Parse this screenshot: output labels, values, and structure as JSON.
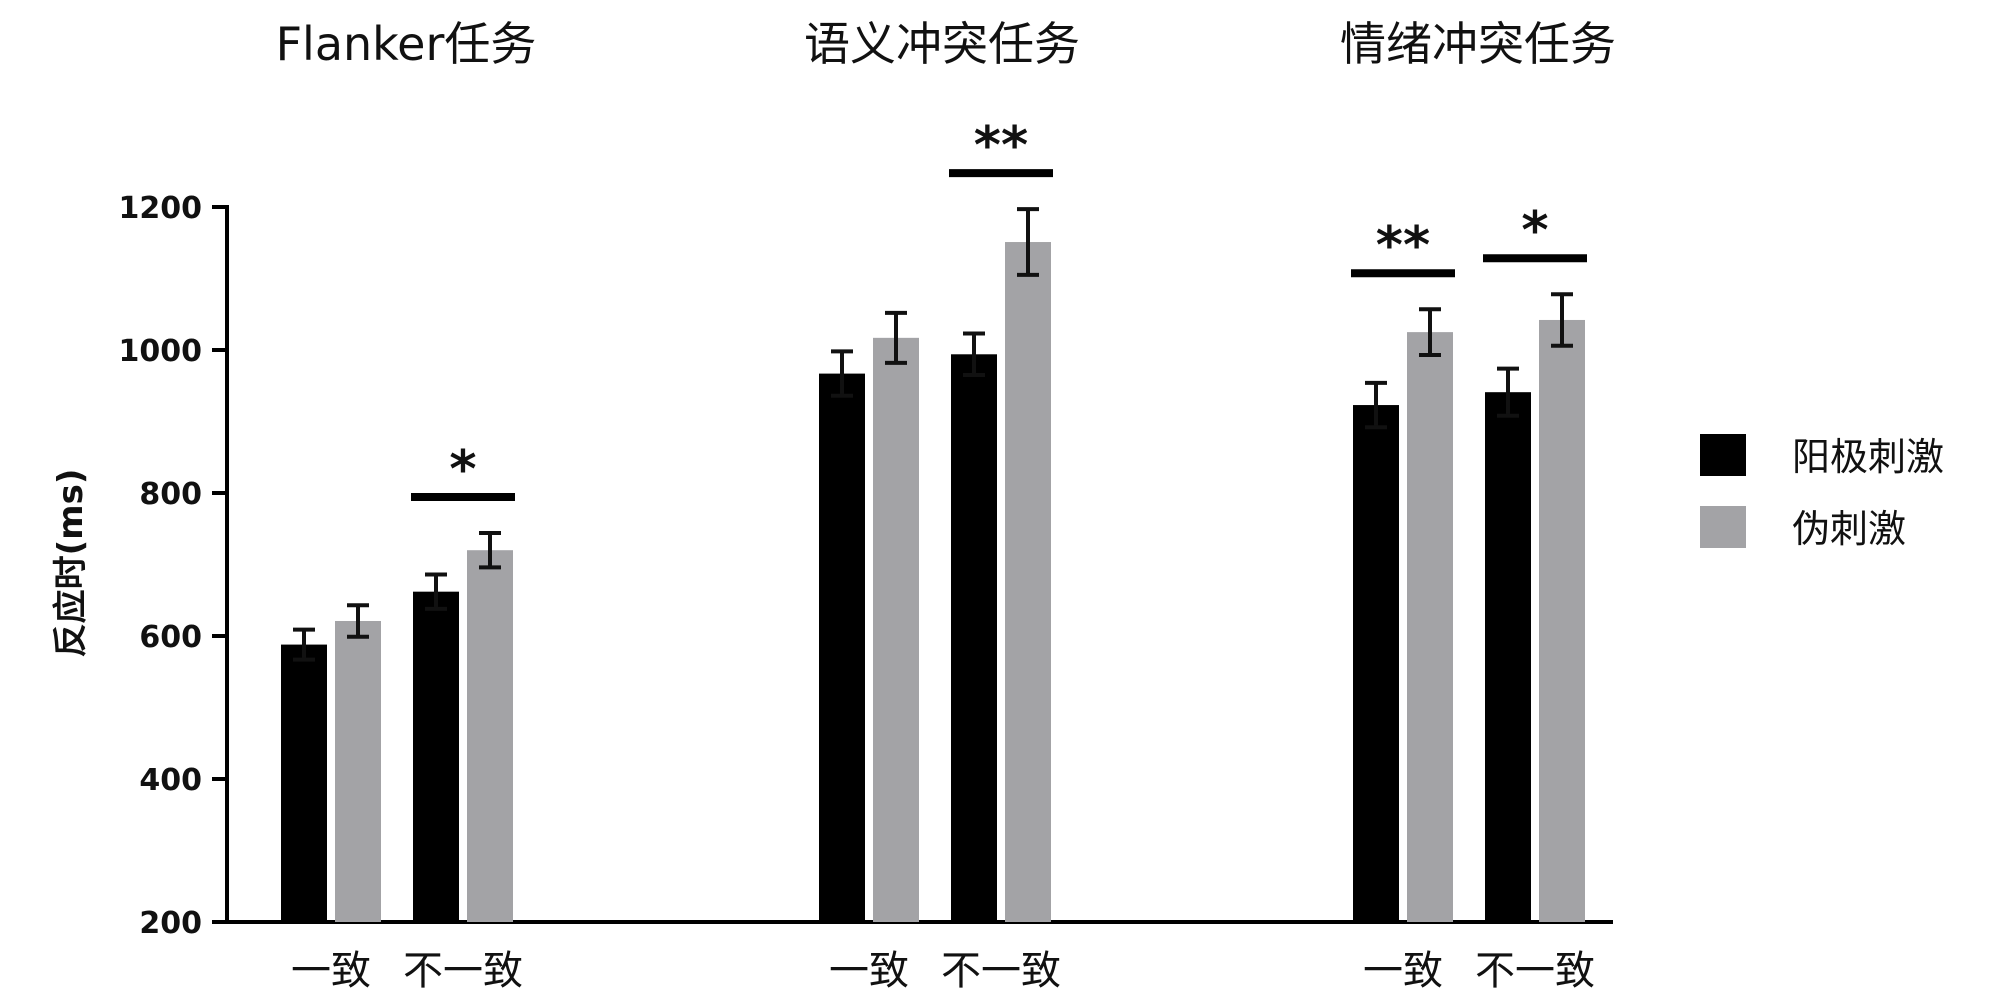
{
  "chart_data": {
    "type": "bar",
    "ylabel": "反应时(ms)",
    "ylim": [
      200,
      1200
    ],
    "yticks": [
      "200",
      "400",
      "600",
      "800",
      "1000",
      "1200"
    ],
    "series_names": [
      "阳极刺激",
      "伪刺激"
    ],
    "colors": {
      "anodal": "#000000",
      "sham": "#a3a3a6"
    },
    "panels": [
      {
        "title": "Flanker任务",
        "categories": [
          "一致",
          "不一致"
        ],
        "series": [
          {
            "name": "阳极刺激",
            "values": [
              588,
              662
            ],
            "errors": [
              21,
              24
            ]
          },
          {
            "name": "伪刺激",
            "values": [
              621,
              720
            ],
            "errors": [
              22,
              24
            ]
          }
        ],
        "significance": [
          "",
          "*"
        ]
      },
      {
        "title": "语义冲突任务",
        "categories": [
          "一致",
          "不一致"
        ],
        "series": [
          {
            "name": "阳极刺激",
            "values": [
              967,
              994
            ],
            "errors": [
              31,
              29
            ]
          },
          {
            "name": "伪刺激",
            "values": [
              1017,
              1151
            ],
            "errors": [
              35,
              46
            ]
          }
        ],
        "significance": [
          "",
          "**"
        ]
      },
      {
        "title": "情绪冲突任务",
        "categories": [
          "一致",
          "不一致"
        ],
        "series": [
          {
            "name": "阳极刺激",
            "values": [
              923,
              941
            ],
            "errors": [
              31,
              33
            ]
          },
          {
            "name": "伪刺激",
            "values": [
              1025,
              1042
            ],
            "errors": [
              32,
              36
            ]
          }
        ],
        "significance": [
          "**",
          "*"
        ]
      }
    ],
    "legend_position": "right"
  }
}
